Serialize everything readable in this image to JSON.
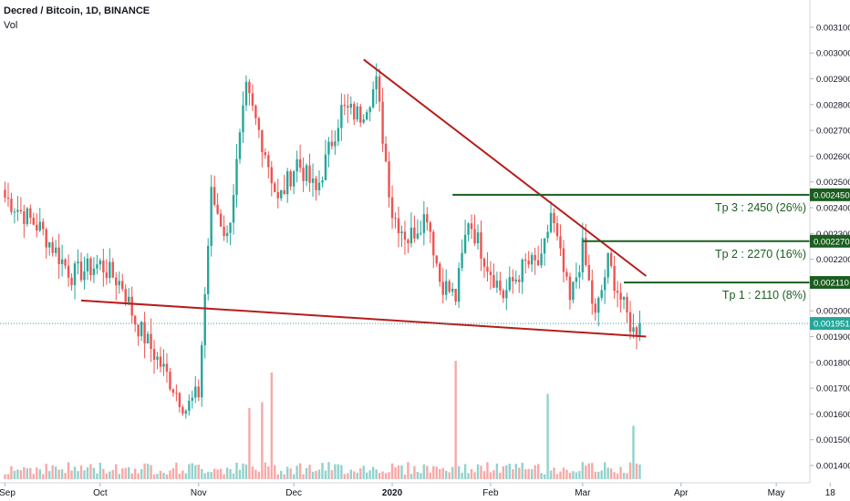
{
  "header": {
    "title": "Decred / Bitcoin, 1D, BINANCE",
    "volume_label": "Vol"
  },
  "colors": {
    "up": "#26a69a",
    "down": "#ef5350",
    "trendline": "#b71c1c",
    "target": "#1b5e20",
    "last_price_bg": "#26a69a",
    "target_bg": "#1b5e20"
  },
  "chart_data": {
    "type": "candlestick",
    "title": "Decred / Bitcoin, 1D, BINANCE",
    "ylim": [
      0.00137,
      0.00317
    ],
    "y_ticks": [
      "0.003100",
      "0.003000",
      "0.002900",
      "0.002800",
      "0.002700",
      "0.002600",
      "0.002500",
      "0.002400",
      "0.002300",
      "0.002200",
      "0.002100",
      "0.002000",
      "0.001900",
      "0.001800",
      "0.001700",
      "0.001600",
      "0.001500",
      "0.001400"
    ],
    "x_ticks": [
      "Sep",
      "Oct",
      "Nov",
      "Dec",
      "2020",
      "Feb",
      "Mar",
      "Apr",
      "May",
      "18"
    ],
    "last_price": {
      "label": "0.001951",
      "value": 0.001951
    },
    "price_path": [
      [
        "2019-09-01",
        0.00244
      ],
      [
        "2019-09-12",
        0.00232
      ],
      [
        "2019-09-22",
        0.00214
      ],
      [
        "2019-10-01",
        0.00218
      ],
      [
        "2019-10-08",
        0.0021
      ],
      [
        "2019-10-12",
        0.00196
      ],
      [
        "2019-10-22",
        0.00175
      ],
      [
        "2019-10-28",
        0.00162
      ],
      [
        "2019-11-01",
        0.00168
      ],
      [
        "2019-11-05",
        0.00245
      ],
      [
        "2019-11-10",
        0.00228
      ],
      [
        "2019-11-16",
        0.00285
      ],
      [
        "2019-11-22",
        0.00262
      ],
      [
        "2019-11-26",
        0.00242
      ],
      [
        "2019-12-02",
        0.00258
      ],
      [
        "2019-12-08",
        0.00246
      ],
      [
        "2019-12-16",
        0.00278
      ],
      [
        "2019-12-22",
        0.00276
      ],
      [
        "2019-12-27",
        0.00288
      ],
      [
        "2020-01-01",
        0.00238
      ],
      [
        "2020-01-06",
        0.00228
      ],
      [
        "2020-01-12",
        0.00238
      ],
      [
        "2020-01-16",
        0.00212
      ],
      [
        "2020-01-21",
        0.00205
      ],
      [
        "2020-01-25",
        0.00236
      ],
      [
        "2020-01-31",
        0.00218
      ],
      [
        "2020-02-05",
        0.00206
      ],
      [
        "2020-02-12",
        0.00218
      ],
      [
        "2020-02-17",
        0.00218
      ],
      [
        "2020-02-20",
        0.00238
      ],
      [
        "2020-02-26",
        0.00203
      ],
      [
        "2020-03-01",
        0.00224
      ],
      [
        "2020-03-05",
        0.00197
      ],
      [
        "2020-03-09",
        0.00219
      ],
      [
        "2020-03-14",
        0.00201
      ],
      [
        "2020-03-17",
        0.00192
      ],
      [
        "2020-03-19",
        0.001951
      ]
    ],
    "trendlines": [
      {
        "name": "resistance",
        "from": [
          "2019-12-23",
          0.002975
        ],
        "to": [
          "2020-03-21",
          0.002135
        ]
      },
      {
        "name": "support",
        "from": [
          "2019-09-25",
          0.00204
        ],
        "to": [
          "2020-03-21",
          0.0019
        ]
      }
    ],
    "targets": [
      {
        "label": "Tp 3 : 2450 (26%)",
        "axis_label": "0.002450",
        "value": 0.00245,
        "start": "2020-01-20"
      },
      {
        "label": "Tp 2 : 2270 (16%)",
        "axis_label": "0.002270",
        "value": 0.00227,
        "start": "2020-03-01"
      },
      {
        "label": "Tp 1 : 2110 (8%)",
        "axis_label": "0.002110",
        "value": 0.00211,
        "start": "2020-03-14"
      }
    ],
    "volume_spikes": [
      [
        "2019-11-24",
        0.9
      ],
      [
        "2019-11-21",
        0.65
      ],
      [
        "2019-11-17",
        0.6
      ],
      [
        "2020-01-21",
        1.0
      ],
      [
        "2020-02-19",
        0.72
      ],
      [
        "2020-03-17",
        0.45
      ]
    ]
  }
}
